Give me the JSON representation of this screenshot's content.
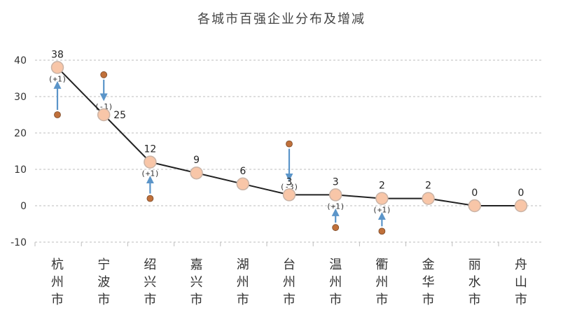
{
  "chart_data": {
    "type": "line",
    "title": "各城市百强企业分布及增减",
    "categories": [
      "杭州市",
      "宁波市",
      "绍兴市",
      "嘉兴市",
      "湖州市",
      "台州市",
      "温州市",
      "衢州市",
      "金华市",
      "丽水市",
      "舟山市"
    ],
    "series": [
      {
        "values": [
          38,
          25,
          12,
          9,
          6,
          3,
          3,
          2,
          2,
          0,
          0
        ]
      }
    ],
    "changes": [
      {
        "category": "杭州市",
        "label": "(+1)",
        "previous": 25
      },
      {
        "category": "宁波市",
        "label": "(-1)",
        "previous": 36
      },
      {
        "category": "绍兴市",
        "label": "(+1)",
        "previous": 2
      },
      {
        "category": "台州市",
        "label": "(-3)",
        "previous": 17
      },
      {
        "category": "温州市",
        "label": "(+1)",
        "previous": -6
      },
      {
        "category": "衢州市",
        "label": "(+1)",
        "previous": -7
      }
    ],
    "ylim": [
      -10,
      40
    ],
    "yticks": [
      -10,
      0,
      10,
      20,
      30,
      40
    ],
    "grid": true,
    "colors": {
      "line": "#222222",
      "marker_fill": "#f8c6a8",
      "marker_stroke": "#c9b3a6",
      "previous_dot": "#c0703a",
      "arrow": "#5b95c9",
      "grid": "#bdbdbd"
    }
  }
}
